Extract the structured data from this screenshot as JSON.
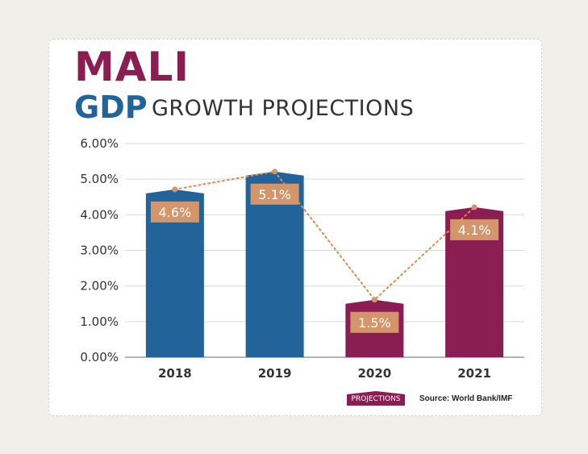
{
  "header": {
    "title": "MALI",
    "subtitle_bold": "GDP",
    "subtitle_rest": "GROWTH PROJECTIONS"
  },
  "legend": {
    "projections_label": "PROJECTIONS"
  },
  "source": "Source: World Bank/IMF",
  "colors": {
    "historical": "#226399",
    "projection": "#8a1e52",
    "label_box": "#d4956a",
    "trend_line": "#e08a4e"
  },
  "chart_data": {
    "type": "bar",
    "title": "MALI GDP GROWTH PROJECTIONS",
    "categories": [
      "2018",
      "2019",
      "2020",
      "2021"
    ],
    "values": [
      4.6,
      5.1,
      1.5,
      4.1
    ],
    "data_labels": [
      "4.6%",
      "5.1%",
      "1.5%",
      "4.1%"
    ],
    "is_projection": [
      false,
      false,
      true,
      true
    ],
    "ylim": [
      0,
      6
    ],
    "yticks": [
      0,
      1,
      2,
      3,
      4,
      5,
      6
    ],
    "ytick_labels": [
      "0.00%",
      "1.00%",
      "2.00%",
      "3.00%",
      "4.00%",
      "5.00%",
      "6.00%"
    ],
    "grid": true,
    "trend_line": true
  }
}
